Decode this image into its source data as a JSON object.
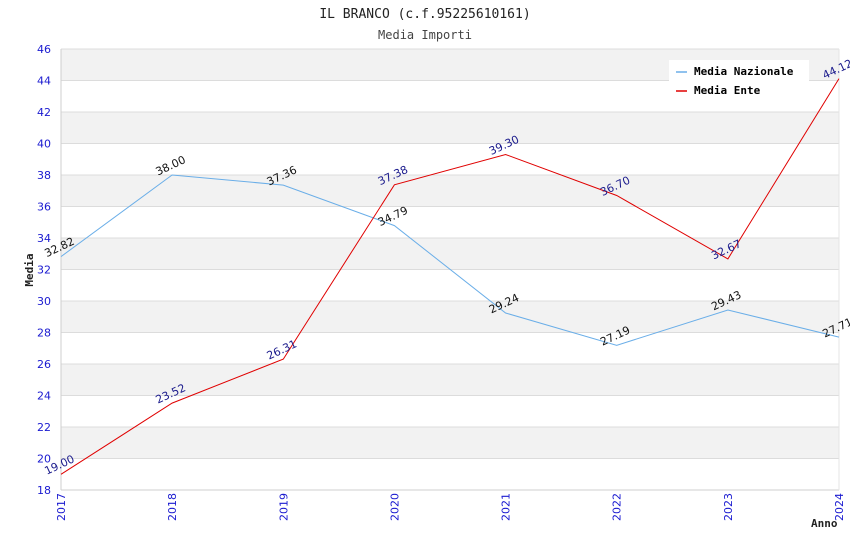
{
  "chart_data": {
    "type": "line",
    "title": "IL BRANCO (c.f.95225610161)",
    "subtitle": "Media Importi",
    "xlabel": "Anno",
    "ylabel": "Media",
    "x": [
      "2017",
      "2018",
      "2019",
      "2020",
      "2021",
      "2022",
      "2023",
      "2024"
    ],
    "ylim": [
      18,
      46
    ],
    "yticks": [
      18,
      20,
      22,
      24,
      26,
      28,
      30,
      32,
      34,
      36,
      38,
      40,
      42,
      44,
      46
    ],
    "grid": true,
    "legend_position": "top-right",
    "series": [
      {
        "name": "Media Nazionale",
        "color": "#6aaee8",
        "values": [
          32.82,
          38.0,
          37.36,
          34.79,
          29.24,
          27.19,
          29.43,
          27.71
        ],
        "labels": [
          "32.82",
          "38.00",
          "37.36",
          "34.79",
          "29.24",
          "27.19",
          "29.43",
          "27.71"
        ]
      },
      {
        "name": "Media Ente",
        "color": "#e00000",
        "values": [
          19.0,
          23.52,
          26.31,
          37.38,
          39.3,
          36.7,
          32.67,
          44.12
        ],
        "labels": [
          "19.00",
          "23.52",
          "26.31",
          "37.38",
          "39.30",
          "36.70",
          "32.67",
          "44.12"
        ]
      }
    ]
  }
}
